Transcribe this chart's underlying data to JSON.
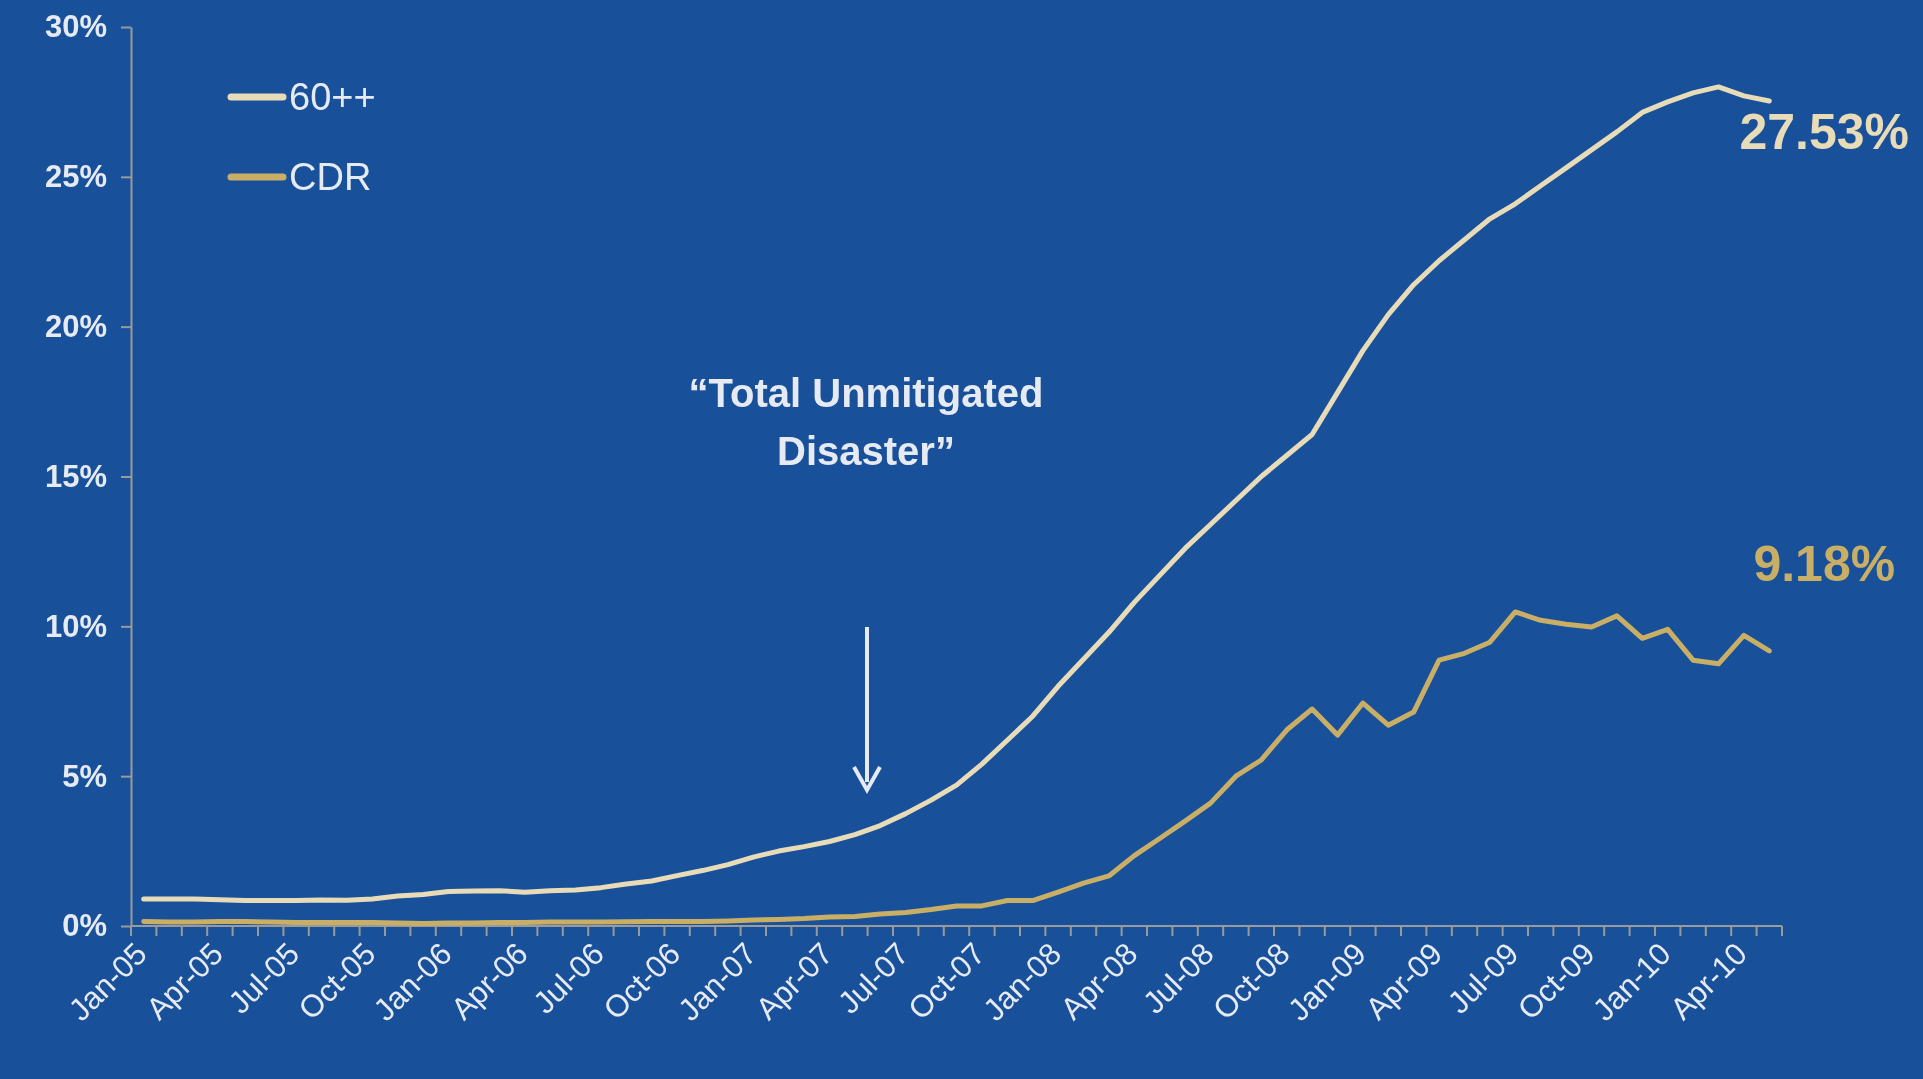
{
  "chart_data": {
    "type": "line",
    "categories": [
      "Jan-05",
      null,
      null,
      "Apr-05",
      null,
      null,
      "Jul-05",
      null,
      null,
      "Oct-05",
      null,
      null,
      "Jan-06",
      null,
      null,
      "Apr-06",
      null,
      null,
      "Jul-06",
      null,
      null,
      "Oct-06",
      null,
      null,
      "Jan-07",
      null,
      null,
      "Apr-07",
      null,
      null,
      "Jul-07",
      null,
      null,
      "Oct-07",
      null,
      null,
      "Jan-08",
      null,
      null,
      "Apr-08",
      null,
      null,
      "Jul-08",
      null,
      null,
      "Oct-08",
      null,
      null,
      "Jan-09",
      null,
      null,
      "Apr-09",
      null,
      null,
      "Jul-09",
      null,
      null,
      "Oct-09",
      null,
      null,
      "Jan-10",
      null,
      null,
      "Apr-10",
      null
    ],
    "series": [
      {
        "name": "60++",
        "color": "#e8dcb8",
        "values": [
          0.9,
          0.9,
          0.9,
          0.88,
          0.85,
          0.85,
          0.85,
          0.87,
          0.86,
          0.9,
          1.0,
          1.05,
          1.15,
          1.17,
          1.18,
          1.13,
          1.18,
          1.2,
          1.28,
          1.4,
          1.5,
          1.68,
          1.85,
          2.05,
          2.3,
          2.5,
          2.65,
          2.82,
          3.05,
          3.35,
          3.75,
          4.2,
          4.7,
          5.4,
          6.2,
          7.0,
          8.0,
          8.9,
          9.8,
          10.8,
          11.7,
          12.6,
          13.4,
          14.2,
          15.0,
          15.7,
          16.4,
          17.8,
          19.2,
          20.4,
          21.4,
          22.2,
          22.9,
          23.6,
          24.1,
          24.7,
          25.3,
          25.9,
          26.5,
          27.15,
          27.5,
          27.8,
          28.0,
          27.7,
          27.53
        ],
        "value_labels": [
          null,
          null,
          null,
          null,
          null,
          null,
          null,
          null,
          null,
          null,
          null,
          null,
          null,
          null,
          null,
          null,
          null,
          null,
          null,
          null,
          null,
          null,
          null,
          null,
          null,
          null,
          null,
          null,
          null,
          null,
          null,
          null,
          null,
          null,
          null,
          null,
          null,
          null,
          null,
          null,
          null,
          null,
          null,
          null,
          null,
          null,
          null,
          null,
          null,
          null,
          null,
          null,
          null,
          null,
          null,
          null,
          null,
          null,
          null,
          null,
          null,
          null,
          null,
          null,
          "27.53%"
        ]
      },
      {
        "name": "CDR",
        "color": "#c9ae66",
        "values": [
          0.15,
          0.13,
          0.13,
          0.15,
          0.15,
          0.13,
          0.12,
          0.12,
          0.12,
          0.12,
          0.1,
          0.08,
          0.1,
          0.1,
          0.12,
          0.12,
          0.13,
          0.13,
          0.13,
          0.14,
          0.15,
          0.15,
          0.15,
          0.17,
          0.2,
          0.22,
          0.25,
          0.3,
          0.32,
          0.4,
          0.45,
          0.55,
          0.67,
          0.67,
          0.85,
          0.85,
          1.13,
          1.43,
          1.67,
          2.35,
          2.92,
          3.5,
          4.1,
          5.0,
          5.54,
          6.54,
          7.24,
          6.37,
          7.44,
          6.7,
          7.14,
          8.87,
          9.1,
          9.47,
          10.48,
          10.2,
          10.07,
          9.98,
          10.35,
          9.6,
          9.9,
          8.87,
          8.75,
          9.7,
          9.18
        ],
        "value_labels": [
          null,
          null,
          null,
          null,
          null,
          null,
          null,
          null,
          null,
          null,
          null,
          null,
          null,
          null,
          null,
          null,
          null,
          null,
          null,
          null,
          null,
          null,
          null,
          null,
          null,
          null,
          null,
          null,
          null,
          null,
          null,
          null,
          null,
          null,
          null,
          null,
          null,
          null,
          null,
          null,
          null,
          null,
          null,
          null,
          null,
          null,
          null,
          null,
          null,
          null,
          null,
          null,
          null,
          null,
          null,
          null,
          null,
          null,
          null,
          null,
          null,
          null,
          null,
          null,
          "9.18%"
        ]
      }
    ],
    "ylim": [
      0,
      30
    ],
    "yticks": [
      {
        "value": 0,
        "label": "0%"
      },
      {
        "value": 5,
        "label": "5%"
      },
      {
        "value": 10,
        "label": "10%"
      },
      {
        "value": 15,
        "label": "15%"
      },
      {
        "value": 20,
        "label": "20%"
      },
      {
        "value": 25,
        "label": "25%"
      },
      {
        "value": 30,
        "label": "30%"
      }
    ],
    "annotations": [
      "“Total Unmitigated Disaster”"
    ],
    "legend": "top left",
    "grid": false,
    "marker": "none",
    "line_style": "solid"
  }
}
